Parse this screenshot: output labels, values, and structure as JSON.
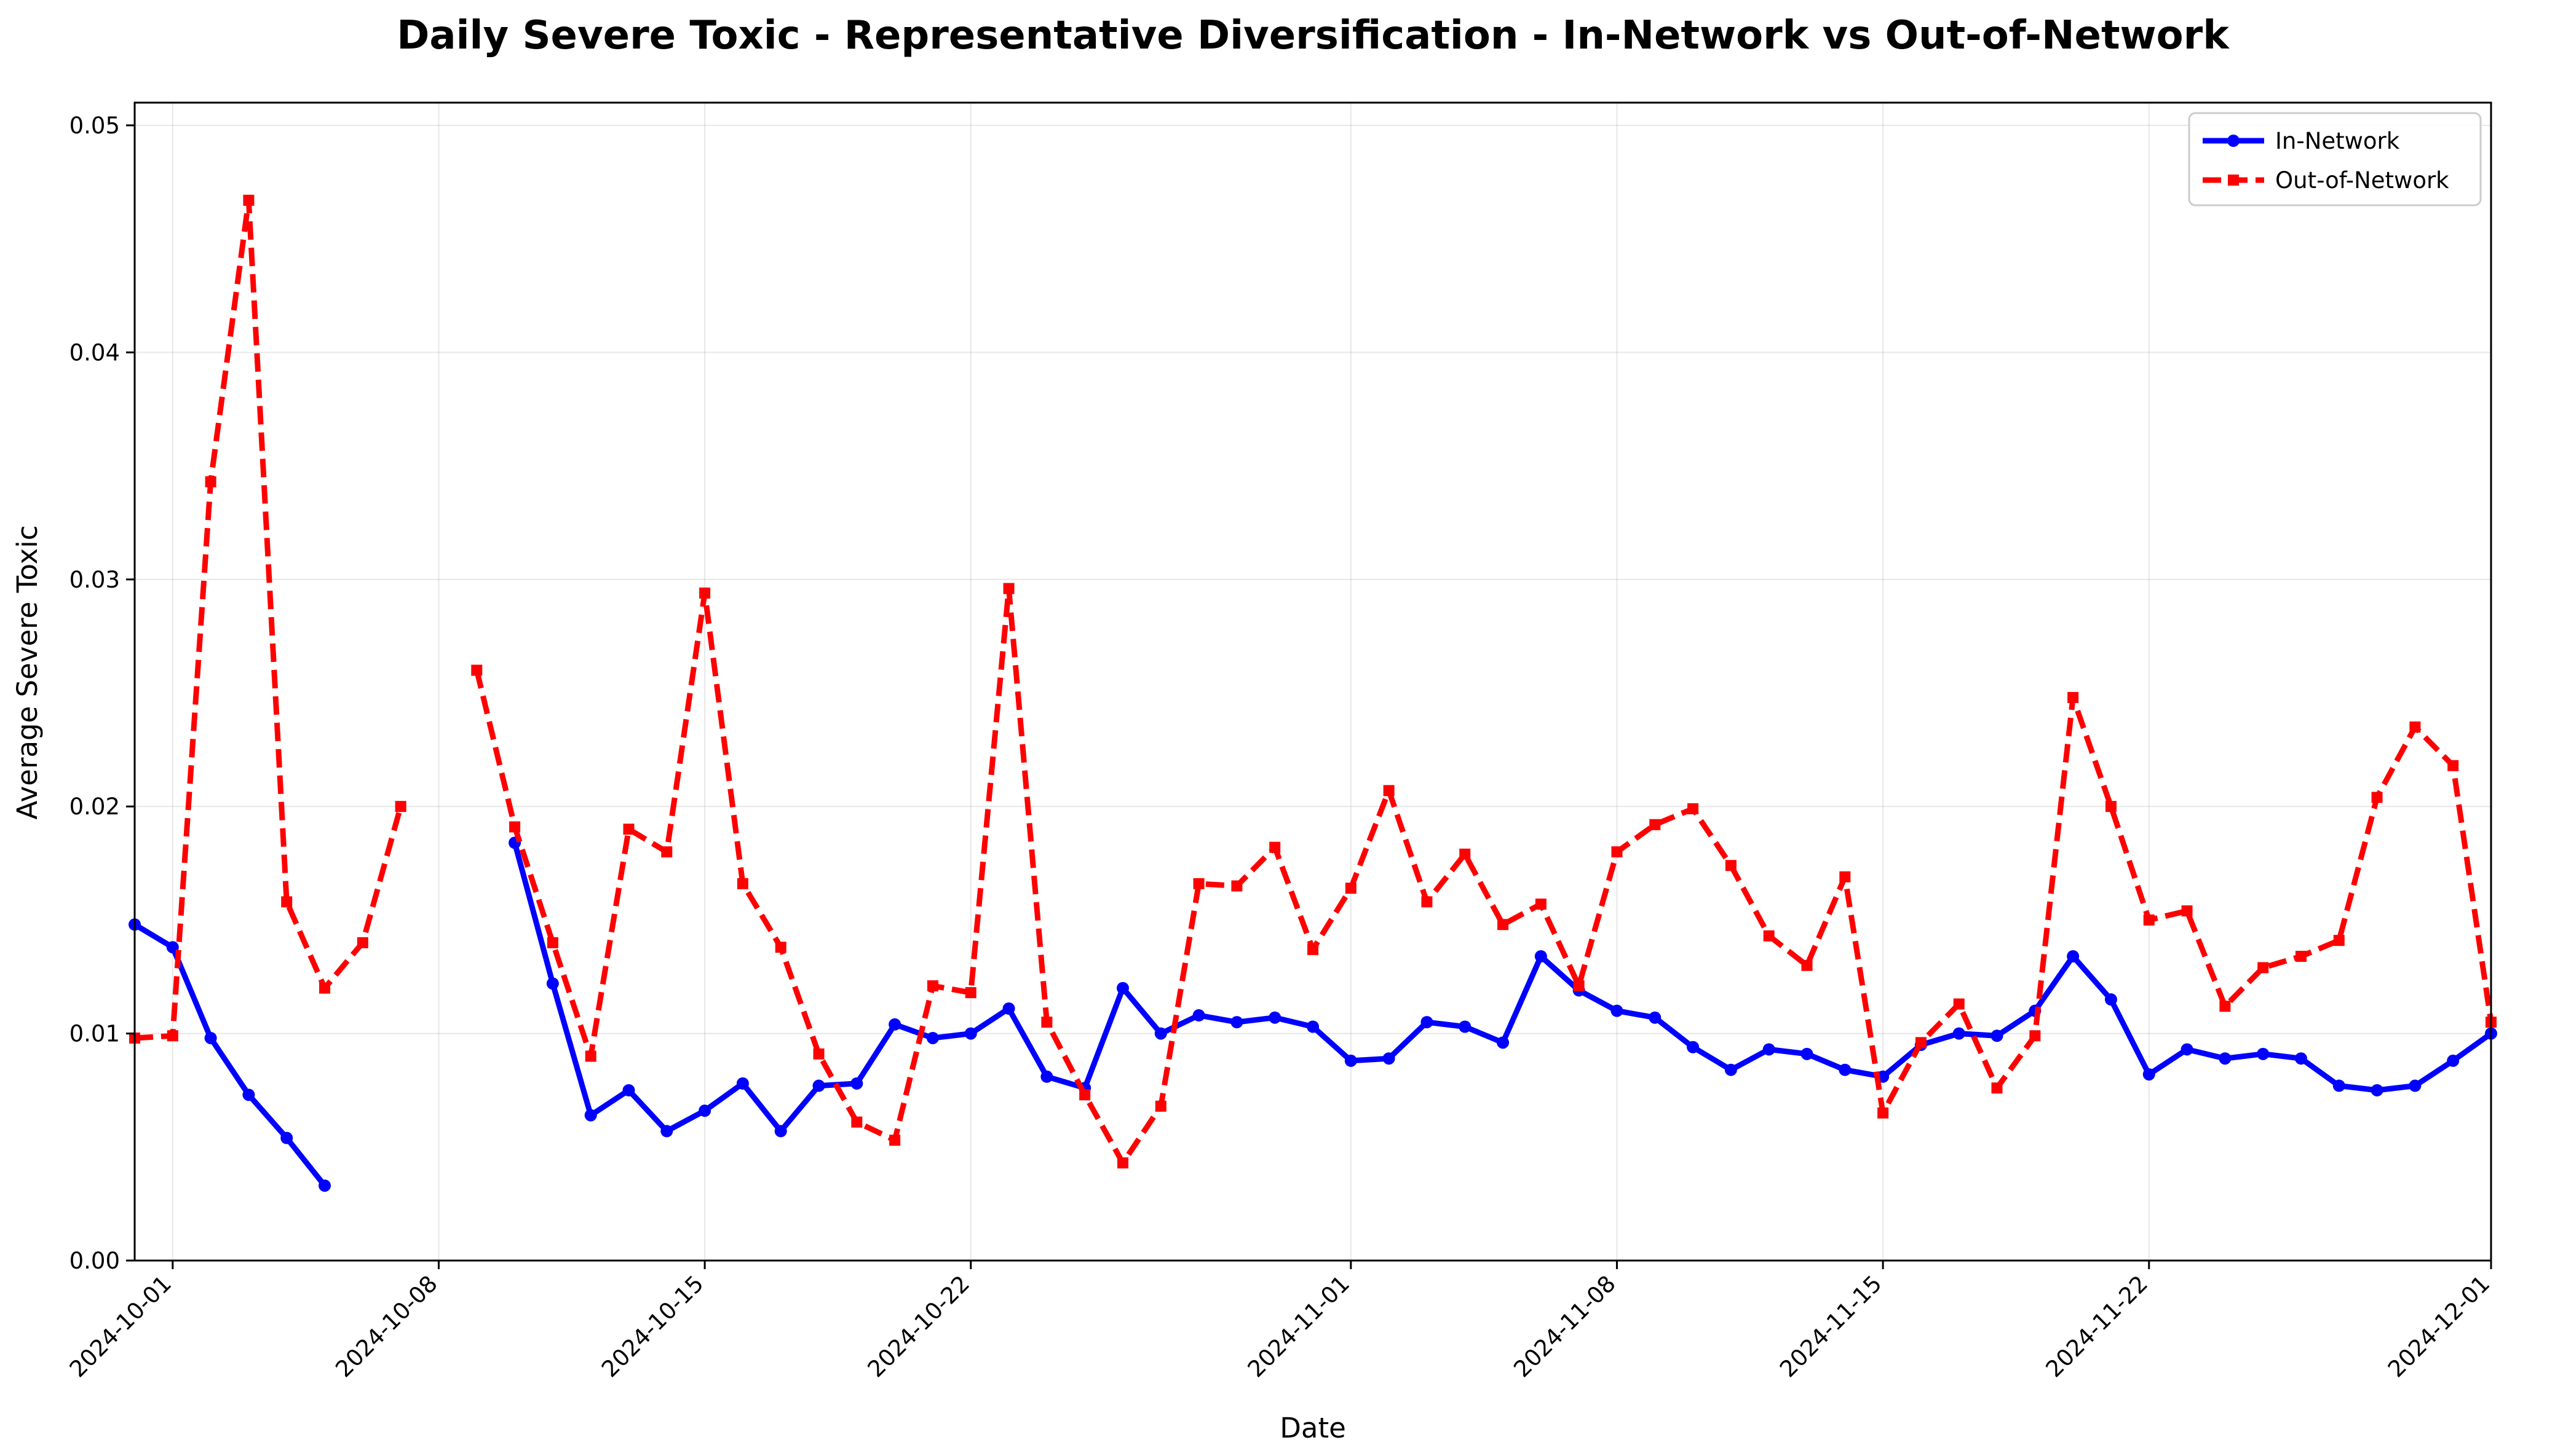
{
  "chart_data": {
    "type": "line",
    "title": "Daily Severe Toxic - Representative Diversification - In-Network vs Out-of-Network",
    "xlabel": "Date",
    "ylabel": "Average Severe Toxic",
    "xlim": [
      "2024-09-30",
      "2024-12-01"
    ],
    "ylim": [
      0,
      0.051
    ],
    "grid": true,
    "legend_position": "top-right",
    "x_tick_labels": [
      "2024-10-01",
      "2024-10-08",
      "2024-10-15",
      "2024-10-22",
      "2024-11-01",
      "2024-11-08",
      "2024-11-15",
      "2024-11-22",
      "2024-12-01"
    ],
    "y_tick_labels": [
      "0.00",
      "0.01",
      "0.02",
      "0.03",
      "0.04",
      "0.05"
    ],
    "y_ticks": [
      0,
      0.01,
      0.02,
      0.03,
      0.04,
      0.05
    ],
    "series": [
      {
        "name": "In-Network",
        "color": "#0000ff",
        "line_style": "solid",
        "marker": "circle",
        "points": [
          [
            "2024-09-30",
            0.0148
          ],
          [
            "2024-10-01",
            0.0138
          ],
          [
            "2024-10-02",
            0.0098
          ],
          [
            "2024-10-03",
            0.0073
          ],
          [
            "2024-10-04",
            0.0054
          ],
          [
            "2024-10-05",
            0.0033
          ],
          [
            "2024-10-10",
            0.0184
          ],
          [
            "2024-10-11",
            0.0122
          ],
          [
            "2024-10-12",
            0.0064
          ],
          [
            "2024-10-13",
            0.0075
          ],
          [
            "2024-10-14",
            0.0057
          ],
          [
            "2024-10-15",
            0.0066
          ],
          [
            "2024-10-16",
            0.0078
          ],
          [
            "2024-10-17",
            0.0057
          ],
          [
            "2024-10-18",
            0.0077
          ],
          [
            "2024-10-19",
            0.0078
          ],
          [
            "2024-10-20",
            0.0104
          ],
          [
            "2024-10-21",
            0.0098
          ],
          [
            "2024-10-22",
            0.01
          ],
          [
            "2024-10-23",
            0.0111
          ],
          [
            "2024-10-24",
            0.0081
          ],
          [
            "2024-10-25",
            0.0076
          ],
          [
            "2024-10-26",
            0.012
          ],
          [
            "2024-10-27",
            0.01
          ],
          [
            "2024-10-28",
            0.0108
          ],
          [
            "2024-10-29",
            0.0105
          ],
          [
            "2024-10-30",
            0.0107
          ],
          [
            "2024-10-31",
            0.0103
          ],
          [
            "2024-11-01",
            0.0088
          ],
          [
            "2024-11-02",
            0.0089
          ],
          [
            "2024-11-03",
            0.0105
          ],
          [
            "2024-11-04",
            0.0103
          ],
          [
            "2024-11-05",
            0.0096
          ],
          [
            "2024-11-06",
            0.0134
          ],
          [
            "2024-11-07",
            0.0119
          ],
          [
            "2024-11-08",
            0.011
          ],
          [
            "2024-11-09",
            0.0107
          ],
          [
            "2024-11-10",
            0.0094
          ],
          [
            "2024-11-11",
            0.0084
          ],
          [
            "2024-11-12",
            0.0093
          ],
          [
            "2024-11-13",
            0.0091
          ],
          [
            "2024-11-14",
            0.0084
          ],
          [
            "2024-11-15",
            0.0081
          ],
          [
            "2024-11-16",
            0.0095
          ],
          [
            "2024-11-17",
            0.01
          ],
          [
            "2024-11-18",
            0.0099
          ],
          [
            "2024-11-19",
            0.011
          ],
          [
            "2024-11-20",
            0.0134
          ],
          [
            "2024-11-21",
            0.0115
          ],
          [
            "2024-11-22",
            0.0082
          ],
          [
            "2024-11-23",
            0.0093
          ],
          [
            "2024-11-24",
            0.0089
          ],
          [
            "2024-11-25",
            0.0091
          ],
          [
            "2024-11-26",
            0.0089
          ],
          [
            "2024-11-27",
            0.0077
          ],
          [
            "2024-11-28",
            0.0075
          ],
          [
            "2024-11-29",
            0.0077
          ],
          [
            "2024-11-30",
            0.0088
          ],
          [
            "2024-12-01",
            0.01
          ]
        ]
      },
      {
        "name": "Out-of-Network",
        "color": "#ff0000",
        "line_style": "dashed",
        "marker": "square",
        "points": [
          [
            "2024-09-30",
            0.0098
          ],
          [
            "2024-10-01",
            0.0099
          ],
          [
            "2024-10-02",
            0.0343
          ],
          [
            "2024-10-03",
            0.0467
          ],
          [
            "2024-10-04",
            0.0158
          ],
          [
            "2024-10-05",
            0.012
          ],
          [
            "2024-10-06",
            0.014
          ],
          [
            "2024-10-07",
            0.02
          ],
          [
            "2024-10-09",
            0.026
          ],
          [
            "2024-10-10",
            0.0191
          ],
          [
            "2024-10-11",
            0.014
          ],
          [
            "2024-10-12",
            0.009
          ],
          [
            "2024-10-13",
            0.019
          ],
          [
            "2024-10-14",
            0.018
          ],
          [
            "2024-10-15",
            0.0294
          ],
          [
            "2024-10-16",
            0.0166
          ],
          [
            "2024-10-17",
            0.0138
          ],
          [
            "2024-10-18",
            0.0091
          ],
          [
            "2024-10-19",
            0.0061
          ],
          [
            "2024-10-20",
            0.0053
          ],
          [
            "2024-10-21",
            0.0121
          ],
          [
            "2024-10-22",
            0.0118
          ],
          [
            "2024-10-23",
            0.0296
          ],
          [
            "2024-10-24",
            0.0105
          ],
          [
            "2024-10-25",
            0.0073
          ],
          [
            "2024-10-26",
            0.0043
          ],
          [
            "2024-10-27",
            0.0068
          ],
          [
            "2024-10-28",
            0.0166
          ],
          [
            "2024-10-29",
            0.0165
          ],
          [
            "2024-10-30",
            0.0182
          ],
          [
            "2024-10-31",
            0.0137
          ],
          [
            "2024-11-01",
            0.0164
          ],
          [
            "2024-11-02",
            0.0207
          ],
          [
            "2024-11-03",
            0.0158
          ],
          [
            "2024-11-04",
            0.0179
          ],
          [
            "2024-11-05",
            0.0148
          ],
          [
            "2024-11-06",
            0.0157
          ],
          [
            "2024-11-07",
            0.0121
          ],
          [
            "2024-11-08",
            0.018
          ],
          [
            "2024-11-09",
            0.0192
          ],
          [
            "2024-11-10",
            0.0199
          ],
          [
            "2024-11-11",
            0.0174
          ],
          [
            "2024-11-12",
            0.0143
          ],
          [
            "2024-11-13",
            0.013
          ],
          [
            "2024-11-14",
            0.0169
          ],
          [
            "2024-11-15",
            0.0065
          ],
          [
            "2024-11-16",
            0.0096
          ],
          [
            "2024-11-17",
            0.0113
          ],
          [
            "2024-11-18",
            0.0076
          ],
          [
            "2024-11-19",
            0.0099
          ],
          [
            "2024-11-20",
            0.0248
          ],
          [
            "2024-11-21",
            0.02
          ],
          [
            "2024-11-22",
            0.015
          ],
          [
            "2024-11-23",
            0.0154
          ],
          [
            "2024-11-24",
            0.0112
          ],
          [
            "2024-11-25",
            0.0129
          ],
          [
            "2024-11-26",
            0.0134
          ],
          [
            "2024-11-27",
            0.0141
          ],
          [
            "2024-11-28",
            0.0204
          ],
          [
            "2024-11-29",
            0.0235
          ],
          [
            "2024-11-30",
            0.0218
          ],
          [
            "2024-12-01",
            0.0105
          ]
        ]
      }
    ]
  }
}
